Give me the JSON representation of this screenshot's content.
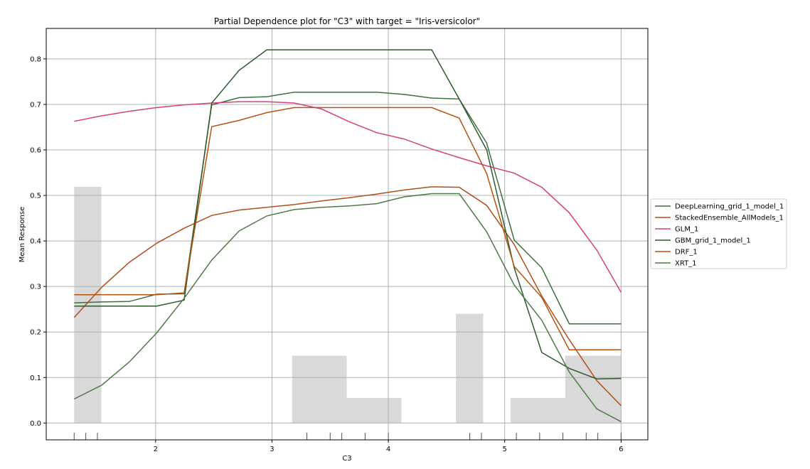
{
  "chart_data": {
    "type": "line",
    "title": "Partial Dependence plot for \"C3\" with target = \"Iris-versicolor\"",
    "xlabel": "C3",
    "ylabel": "Mean Response",
    "xlim": [
      1.06,
      6.23
    ],
    "ylim": [
      -0.037,
      0.867
    ],
    "xticks": [
      2,
      3,
      4,
      5,
      6
    ],
    "yticks": [
      0.0,
      0.1,
      0.2,
      0.3,
      0.4,
      0.5,
      0.6,
      0.7,
      0.8
    ],
    "grid": true,
    "legend_position": "right",
    "x": [
      1.3,
      1.536,
      1.773,
      2.009,
      2.245,
      2.482,
      2.718,
      2.955,
      3.191,
      3.427,
      3.664,
      3.9,
      4.136,
      4.373,
      4.609,
      4.845,
      5.082,
      5.318,
      5.555,
      5.791,
      6.0
    ],
    "series": [
      {
        "name": "DeepLearning_grid_1_model_1",
        "color": "#3d7040",
        "values": [
          0.264,
          0.266,
          0.267,
          0.283,
          0.284,
          0.699,
          0.715,
          0.717,
          0.727,
          0.727,
          0.727,
          0.727,
          0.722,
          0.714,
          0.712,
          0.615,
          0.402,
          0.341,
          0.218,
          0.218,
          0.218
        ]
      },
      {
        "name": "StackedEnsemble_AllModels_1",
        "color": "#b04e18",
        "values": [
          0.232,
          0.298,
          0.353,
          0.395,
          0.428,
          0.456,
          0.468,
          0.474,
          0.48,
          0.488,
          0.495,
          0.503,
          0.512,
          0.519,
          0.518,
          0.478,
          0.392,
          0.279,
          0.183,
          0.093,
          0.038
        ]
      },
      {
        "name": "GLM_1",
        "color": "#d43f82",
        "values": [
          0.663,
          0.675,
          0.685,
          0.693,
          0.699,
          0.703,
          0.706,
          0.706,
          0.703,
          0.69,
          0.662,
          0.638,
          0.624,
          0.602,
          0.583,
          0.565,
          0.549,
          0.518,
          0.462,
          0.38,
          0.287
        ]
      },
      {
        "name": "GBM_grid_1_model_1",
        "color": "#2e5a2e",
        "values": [
          0.257,
          0.257,
          0.257,
          0.257,
          0.27,
          0.703,
          0.775,
          0.82,
          0.82,
          0.82,
          0.82,
          0.82,
          0.82,
          0.82,
          0.712,
          0.6,
          0.341,
          0.155,
          0.12,
          0.097,
          0.098
        ]
      },
      {
        "name": "DRF_1",
        "color": "#b5530f",
        "values": [
          0.282,
          0.282,
          0.282,
          0.282,
          0.286,
          0.651,
          0.665,
          0.682,
          0.693,
          0.693,
          0.693,
          0.693,
          0.693,
          0.693,
          0.67,
          0.548,
          0.344,
          0.276,
          0.161,
          0.161,
          0.161
        ]
      },
      {
        "name": "XRT_1",
        "color": "#4f7a47",
        "values": [
          0.053,
          0.083,
          0.134,
          0.198,
          0.274,
          0.358,
          0.422,
          0.455,
          0.469,
          0.474,
          0.477,
          0.482,
          0.497,
          0.504,
          0.504,
          0.42,
          0.303,
          0.226,
          0.112,
          0.031,
          0.003
        ]
      }
    ],
    "histogram": {
      "color": "#d9d9d9",
      "bins": [
        {
          "x0": 1.3,
          "x1": 1.533,
          "value": 0.519
        },
        {
          "x0": 3.173,
          "x1": 3.642,
          "value": 0.148
        },
        {
          "x0": 3.642,
          "x1": 4.112,
          "value": 0.055
        },
        {
          "x0": 4.581,
          "x1": 4.815,
          "value": 0.24
        },
        {
          "x0": 5.05,
          "x1": 5.52,
          "value": 0.055
        },
        {
          "x0": 5.52,
          "x1": 6.0,
          "value": 0.148
        }
      ]
    },
    "rug": [
      1.3,
      1.4,
      1.5,
      3.3,
      3.5,
      3.6,
      3.8,
      4.0,
      4.7,
      4.8,
      5.1,
      5.3,
      5.5,
      5.7,
      5.8,
      6.0
    ]
  }
}
